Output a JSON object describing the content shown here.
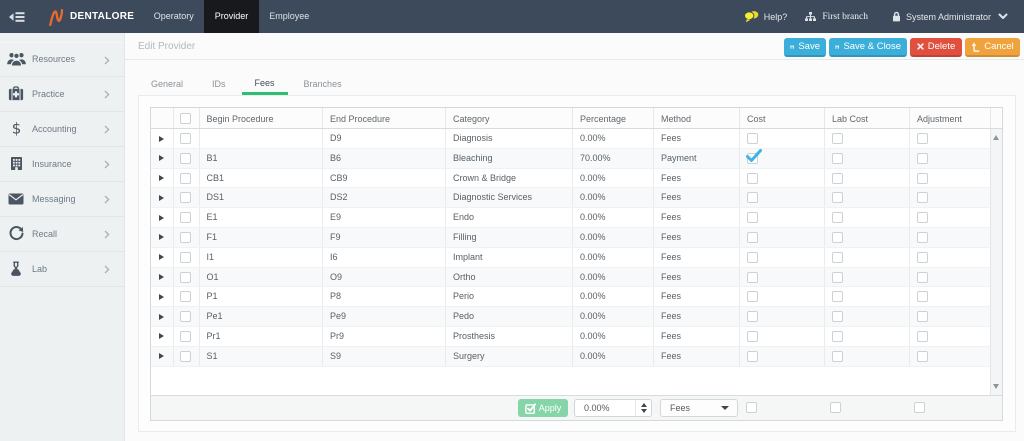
{
  "topbar": {
    "brand": "DENTALORE",
    "menu": [
      {
        "label": "Operatory",
        "active": false
      },
      {
        "label": "Provider",
        "active": true
      },
      {
        "label": "Employee",
        "active": false
      }
    ],
    "help_label": "Help?",
    "branch_label": "First branch",
    "user_label": "System Administrator"
  },
  "sidebar": {
    "items": [
      {
        "label": "Resources",
        "icon": "users-icon"
      },
      {
        "label": "Practice",
        "icon": "medical-bag-icon"
      },
      {
        "label": "Accounting",
        "icon": "dollar-icon"
      },
      {
        "label": "Insurance",
        "icon": "building-icon"
      },
      {
        "label": "Messaging",
        "icon": "envelope-icon"
      },
      {
        "label": "Recall",
        "icon": "refresh-icon"
      },
      {
        "label": "Lab",
        "icon": "flask-icon"
      }
    ]
  },
  "page": {
    "title": "Edit Provider"
  },
  "actions": {
    "save": "Save",
    "save_close": "Save & Close",
    "delete": "Delete",
    "cancel": "Cancel"
  },
  "tabs": [
    {
      "label": "General",
      "active": false
    },
    {
      "label": "IDs",
      "active": false
    },
    {
      "label": "Fees",
      "active": true
    },
    {
      "label": "Branches",
      "active": false
    }
  ],
  "grid": {
    "columns": [
      "Begin Procedure",
      "End Procedure",
      "Category",
      "Percentage",
      "Method",
      "Cost",
      "Lab Cost",
      "Adjustment"
    ],
    "rows": [
      {
        "begin": "",
        "end": "D9",
        "category": "Diagnosis",
        "percentage": "0.00%",
        "method": "Fees",
        "cost": false,
        "lab_cost": false,
        "adjustment": false
      },
      {
        "begin": "B1",
        "end": "B6",
        "category": "Bleaching",
        "percentage": "70.00%",
        "method": "Payment",
        "cost": true,
        "lab_cost": false,
        "adjustment": false
      },
      {
        "begin": "CB1",
        "end": "CB9",
        "category": "Crown & Bridge",
        "percentage": "0.00%",
        "method": "Fees",
        "cost": false,
        "lab_cost": false,
        "adjustment": false
      },
      {
        "begin": "DS1",
        "end": "DS2",
        "category": "Diagnostic Services",
        "percentage": "0.00%",
        "method": "Fees",
        "cost": false,
        "lab_cost": false,
        "adjustment": false
      },
      {
        "begin": "E1",
        "end": "E9",
        "category": "Endo",
        "percentage": "0.00%",
        "method": "Fees",
        "cost": false,
        "lab_cost": false,
        "adjustment": false
      },
      {
        "begin": "F1",
        "end": "F9",
        "category": "Filling",
        "percentage": "0.00%",
        "method": "Fees",
        "cost": false,
        "lab_cost": false,
        "adjustment": false
      },
      {
        "begin": "I1",
        "end": "I6",
        "category": "Implant",
        "percentage": "0.00%",
        "method": "Fees",
        "cost": false,
        "lab_cost": false,
        "adjustment": false
      },
      {
        "begin": "O1",
        "end": "O9",
        "category": "Ortho",
        "percentage": "0.00%",
        "method": "Fees",
        "cost": false,
        "lab_cost": false,
        "adjustment": false
      },
      {
        "begin": "P1",
        "end": "P8",
        "category": "Perio",
        "percentage": "0.00%",
        "method": "Fees",
        "cost": false,
        "lab_cost": false,
        "adjustment": false
      },
      {
        "begin": "Pe1",
        "end": "Pe9",
        "category": "Pedo",
        "percentage": "0.00%",
        "method": "Fees",
        "cost": false,
        "lab_cost": false,
        "adjustment": false
      },
      {
        "begin": "Pr1",
        "end": "Pr9",
        "category": "Prosthesis",
        "percentage": "0.00%",
        "method": "Fees",
        "cost": false,
        "lab_cost": false,
        "adjustment": false
      },
      {
        "begin": "S1",
        "end": "S9",
        "category": "Surgery",
        "percentage": "0.00%",
        "method": "Fees",
        "cost": false,
        "lab_cost": false,
        "adjustment": false
      }
    ],
    "footer": {
      "apply_label": "Apply",
      "percentage_value": "0.00%",
      "method_value": "Fees"
    }
  },
  "colors": {
    "navbar": "#3d4a5b",
    "navbar_active": "#17191d",
    "accent_cyan": "#3bafda",
    "accent_red": "#e0503f",
    "accent_orange": "#f0a33c",
    "accent_green_tab": "#2fbf71",
    "accent_mint": "#85d5a9",
    "check_blue": "#41b2e5",
    "logo_orange": "#ec6a2c",
    "help_yellow": "#f3e82d"
  }
}
